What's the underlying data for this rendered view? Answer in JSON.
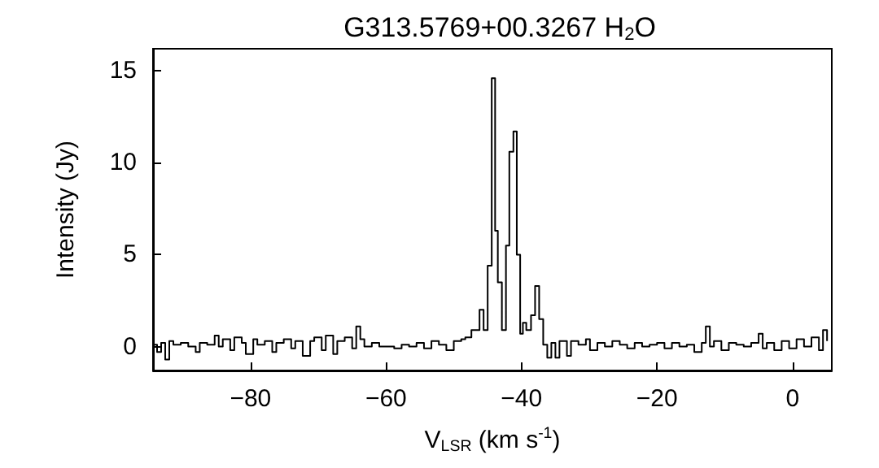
{
  "chart_data": {
    "type": "step",
    "title": "G313.5769+00.3267 H$_{2}$O",
    "xlabel": "V$_{LSR}$ (km s$^{-1}$)",
    "ylabel": "Intensity (Jy)",
    "xlim": [
      -94.4,
      5.8
    ],
    "ylim": [
      -1.3,
      16.2
    ],
    "xticks": [
      -80,
      -60,
      -40,
      -20,
      0
    ],
    "yticks": [
      0,
      5,
      10,
      15
    ],
    "grid": false,
    "series": [
      {
        "color": "#000000",
        "x": [
          -94.4,
          -93.8,
          -93.2,
          -92.6,
          -92.0,
          -91.4,
          -90.3,
          -89.2,
          -88.1,
          -87.5,
          -86.4,
          -85.3,
          -84.7,
          -84.1,
          -83.0,
          -82.4,
          -81.3,
          -80.7,
          -79.6,
          -79.0,
          -77.9,
          -76.8,
          -76.2,
          -75.1,
          -74.0,
          -73.4,
          -72.3,
          -71.2,
          -70.6,
          -69.5,
          -68.9,
          -67.8,
          -67.2,
          -66.1,
          -65.0,
          -64.4,
          -63.8,
          -63.2,
          -62.1,
          -61.0,
          -59.9,
          -58.8,
          -57.7,
          -56.6,
          -55.5,
          -54.4,
          -53.3,
          -52.2,
          -51.1,
          -50.0,
          -48.9,
          -48.3,
          -47.4,
          -46.8,
          -46.2,
          -45.6,
          -45.0,
          -44.4,
          -43.9,
          -43.5,
          -42.9,
          -42.3,
          -41.8,
          -41.2,
          -40.7,
          -40.2,
          -39.8,
          -39.3,
          -38.6,
          -38.0,
          -37.4,
          -36.8,
          -36.2,
          -35.6,
          -35.0,
          -34.4,
          -33.3,
          -32.7,
          -31.6,
          -30.5,
          -29.9,
          -28.8,
          -27.7,
          -26.6,
          -25.5,
          -24.4,
          -23.3,
          -22.2,
          -21.1,
          -20.0,
          -18.9,
          -17.8,
          -16.7,
          -15.6,
          -14.5,
          -13.4,
          -12.8,
          -12.2,
          -11.6,
          -10.5,
          -9.4,
          -8.3,
          -7.2,
          -6.1,
          -5.0,
          -4.4,
          -3.8,
          -2.7,
          -1.6,
          -0.5,
          0.6,
          1.7,
          2.8,
          3.9,
          4.5,
          5.1
        ],
        "values": [
          0.1,
          -0.3,
          0.2,
          -0.7,
          0.3,
          0.1,
          0.2,
          0.0,
          -0.3,
          0.2,
          0.1,
          0.6,
          0.0,
          0.4,
          -0.2,
          0.5,
          0.2,
          -0.4,
          0.4,
          0.1,
          0.3,
          -0.3,
          0.2,
          0.4,
          -0.1,
          0.3,
          -0.5,
          0.3,
          0.5,
          -0.2,
          0.6,
          -0.4,
          0.3,
          0.5,
          -0.1,
          1.1,
          0.4,
          0.0,
          0.2,
          0.0,
          0.0,
          -0.1,
          0.1,
          0.0,
          0.2,
          -0.1,
          0.3,
          0.1,
          -0.2,
          0.3,
          0.4,
          0.5,
          0.9,
          0.9,
          2.0,
          0.9,
          4.4,
          14.6,
          6.3,
          3.5,
          0.9,
          5.5,
          10.6,
          11.7,
          5.0,
          0.7,
          1.3,
          0.9,
          1.7,
          3.3,
          1.5,
          0.1,
          -0.6,
          0.2,
          -0.6,
          0.3,
          -0.5,
          0.3,
          0.1,
          0.4,
          -0.2,
          0.2,
          0.0,
          0.3,
          0.1,
          -0.1,
          0.2,
          0.0,
          0.1,
          0.2,
          -0.1,
          0.2,
          0.0,
          0.1,
          -0.3,
          0.2,
          1.1,
          0.0,
          0.3,
          -0.2,
          0.2,
          0.1,
          0.0,
          0.2,
          0.7,
          -0.1,
          0.2,
          -0.2,
          0.3,
          -0.1,
          0.4,
          0.0,
          0.5,
          -0.2,
          0.9,
          0.3
        ]
      }
    ]
  }
}
